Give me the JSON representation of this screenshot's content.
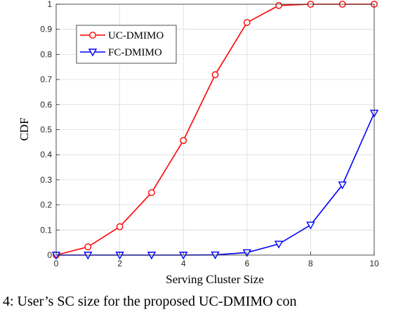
{
  "chart_data": {
    "type": "line",
    "xlabel": "Serving Cluster Size",
    "ylabel": "CDF",
    "xlim": [
      0,
      10
    ],
    "ylim": [
      0,
      1
    ],
    "xticks": [
      0,
      2,
      4,
      6,
      8,
      10
    ],
    "yticks": [
      0,
      0.1,
      0.2,
      0.3,
      0.4,
      0.5,
      0.6,
      0.7,
      0.8,
      0.9,
      1
    ],
    "grid": true,
    "legend_position": "top-left",
    "series": [
      {
        "name": "UC-DMIMO",
        "color": "#ff0000",
        "marker": "circle",
        "x": [
          0,
          1,
          2,
          3,
          4,
          5,
          6,
          7,
          8,
          9,
          10
        ],
        "y": [
          0.0,
          0.033,
          0.113,
          0.249,
          0.457,
          0.719,
          0.927,
          0.995,
          1.0,
          1.0,
          1.0
        ]
      },
      {
        "name": "FC-DMIMO",
        "color": "#0000ff",
        "marker": "triangle-down",
        "x": [
          0,
          1,
          2,
          3,
          4,
          5,
          6,
          7,
          8,
          9,
          10
        ],
        "y": [
          0.0,
          0.0,
          0.0,
          0.0,
          0.0,
          0.001,
          0.01,
          0.044,
          0.12,
          0.28,
          0.566
        ]
      }
    ]
  },
  "caption": "4: User’s SC size for the proposed UC-DMIMO con"
}
